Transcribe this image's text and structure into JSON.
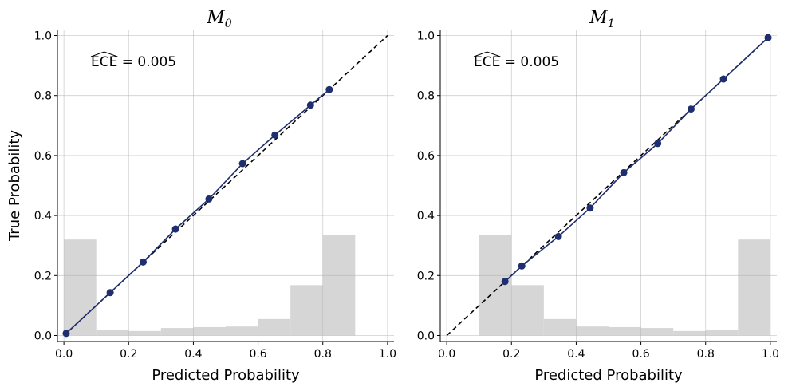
{
  "chart_data": [
    {
      "type": "line",
      "title_main": "M",
      "title_sub": "0",
      "xlabel": "Predicted Probability",
      "ylabel": "True Probability",
      "xlim": [
        -0.02,
        1.02
      ],
      "ylim": [
        -0.02,
        1.02
      ],
      "xticks": [
        "0.0",
        "0.2",
        "0.4",
        "0.6",
        "0.8",
        "1.0"
      ],
      "yticks": [
        "0.0",
        "0.2",
        "0.4",
        "0.6",
        "0.8",
        "1.0"
      ],
      "grid": true,
      "annotation_name": "ECE",
      "annotation_rest": " = 0.005",
      "calibration": {
        "x": [
          0.007,
          0.143,
          0.245,
          0.345,
          0.448,
          0.552,
          0.652,
          0.762,
          0.82
        ],
        "y": [
          0.007,
          0.143,
          0.245,
          0.355,
          0.455,
          0.573,
          0.668,
          0.768,
          0.82
        ],
        "color": "#1f2e6e"
      },
      "diagonal": {
        "x": [
          0.0,
          1.0
        ],
        "y": [
          0.0,
          1.0
        ],
        "style": "dashed",
        "color": "#000000"
      },
      "histogram": {
        "bin_edges": [
          0.0,
          0.1,
          0.2,
          0.3,
          0.4,
          0.5,
          0.6,
          0.7,
          0.8,
          0.9,
          1.0
        ],
        "heights": [
          0.32,
          0.02,
          0.015,
          0.025,
          0.028,
          0.03,
          0.055,
          0.168,
          0.335,
          0.0
        ],
        "color": "#d6d6d6"
      }
    },
    {
      "type": "line",
      "title_main": "M",
      "title_sub": "1",
      "xlabel": "Predicted Probability",
      "ylabel": "",
      "xlim": [
        -0.02,
        1.02
      ],
      "ylim": [
        -0.02,
        1.02
      ],
      "xticks": [
        "0.0",
        "0.2",
        "0.4",
        "0.6",
        "0.8",
        "1.0"
      ],
      "yticks": [
        "0.0",
        "0.2",
        "0.4",
        "0.6",
        "0.8",
        "1.0"
      ],
      "grid": true,
      "annotation_name": "ECE",
      "annotation_rest": " = 0.005",
      "calibration": {
        "x": [
          0.18,
          0.232,
          0.345,
          0.443,
          0.547,
          0.652,
          0.755,
          0.855,
          0.993
        ],
        "y": [
          0.18,
          0.232,
          0.33,
          0.425,
          0.543,
          0.64,
          0.755,
          0.855,
          0.993
        ],
        "color": "#1f2e6e"
      },
      "diagonal": {
        "x": [
          0.0,
          1.0
        ],
        "y": [
          0.0,
          1.0
        ],
        "style": "dashed",
        "color": "#000000"
      },
      "histogram": {
        "bin_edges": [
          0.0,
          0.1,
          0.2,
          0.3,
          0.4,
          0.5,
          0.6,
          0.7,
          0.8,
          0.9,
          1.0
        ],
        "heights": [
          0.0,
          0.335,
          0.168,
          0.055,
          0.03,
          0.028,
          0.025,
          0.015,
          0.02,
          0.32
        ],
        "color": "#d6d6d6"
      }
    }
  ]
}
